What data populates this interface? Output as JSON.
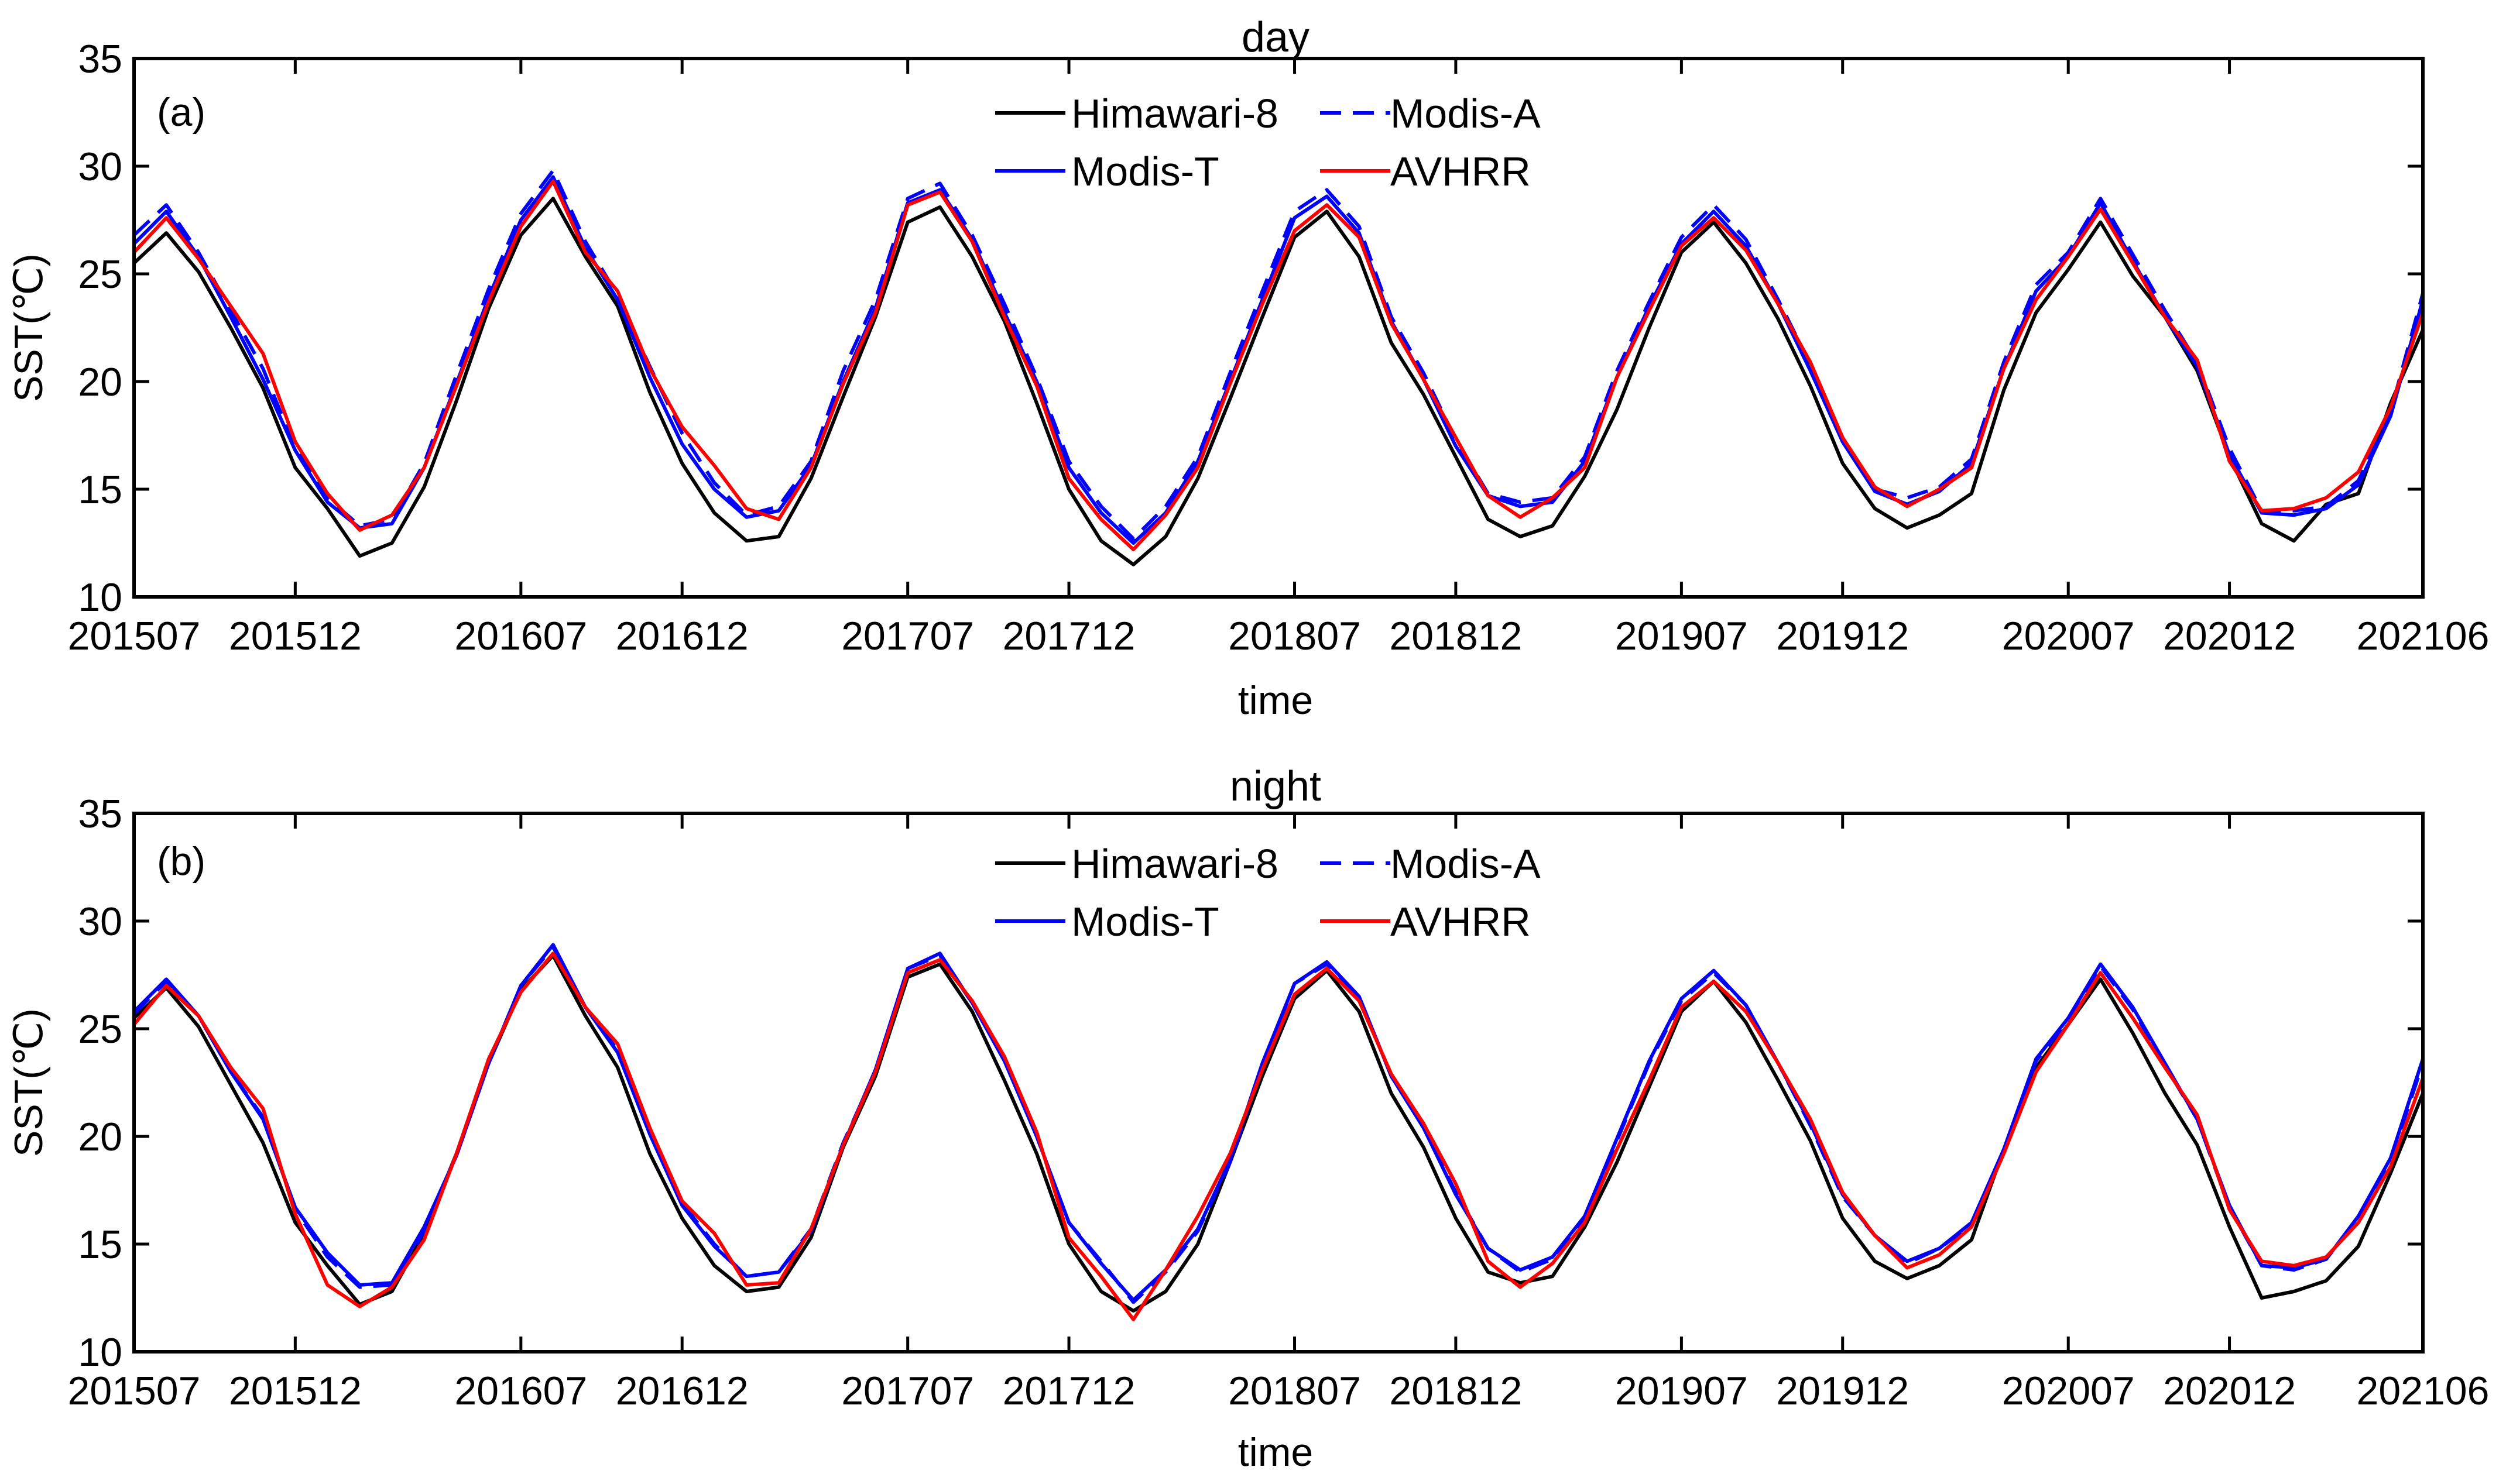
{
  "chart_data": [
    {
      "type": "line",
      "title": "day",
      "panel_label": "(a)",
      "xlabel": "time",
      "ylabel": "SST(℃)",
      "ylim": [
        10,
        35
      ],
      "yticks": [
        10,
        15,
        20,
        25,
        30,
        35
      ],
      "xtick_labels": [
        "201507",
        "201512",
        "201607",
        "201612",
        "201707",
        "201712",
        "201807",
        "201812",
        "201907",
        "201912",
        "202007",
        "202012",
        "202106"
      ],
      "x": [
        "201507",
        "201508",
        "201509",
        "201510",
        "201511",
        "201512",
        "201601",
        "201602",
        "201603",
        "201604",
        "201605",
        "201606",
        "201607",
        "201608",
        "201609",
        "201610",
        "201611",
        "201612",
        "201701",
        "201702",
        "201703",
        "201704",
        "201705",
        "201706",
        "201707",
        "201708",
        "201709",
        "201710",
        "201711",
        "201712",
        "201801",
        "201802",
        "201803",
        "201804",
        "201805",
        "201806",
        "201807",
        "201808",
        "201809",
        "201810",
        "201811",
        "201812",
        "201901",
        "201902",
        "201903",
        "201904",
        "201905",
        "201906",
        "201907",
        "201908",
        "201909",
        "201910",
        "201911",
        "201912",
        "202001",
        "202002",
        "202003",
        "202004",
        "202005",
        "202006",
        "202007",
        "202008",
        "202009",
        "202010",
        "202011",
        "202012",
        "202101",
        "202102",
        "202103",
        "202104",
        "202105",
        "202106"
      ],
      "series": [
        {
          "name": "Himawari-8",
          "color": "#000000",
          "dash": "solid",
          "values": [
            25.5,
            26.9,
            25.1,
            22.5,
            19.7,
            16.0,
            14.1,
            11.9,
            12.5,
            15.1,
            19.1,
            23.4,
            26.8,
            28.5,
            25.8,
            23.5,
            19.5,
            16.2,
            13.9,
            12.6,
            12.8,
            15.5,
            19.3,
            23.0,
            27.4,
            28.1,
            25.8,
            22.8,
            19.0,
            15.0,
            12.6,
            11.5,
            12.8,
            15.5,
            19.2,
            23.0,
            26.7,
            27.9,
            25.8,
            21.8,
            19.4,
            16.5,
            13.6,
            12.8,
            13.3,
            15.6,
            18.7,
            22.5,
            26.0,
            27.4,
            25.5,
            22.9,
            19.8,
            16.2,
            14.1,
            13.2,
            13.8,
            14.8,
            19.6,
            23.2,
            25.2,
            27.4,
            24.9,
            23.0,
            20.5,
            16.5,
            13.4,
            12.6,
            14.3,
            14.8,
            19.0,
            22.4
          ]
        },
        {
          "name": "Modis-A",
          "color": "#0000ff",
          "dash": "dashed",
          "values": [
            26.8,
            28.2,
            26.0,
            23.3,
            20.6,
            16.9,
            14.6,
            13.3,
            13.6,
            16.2,
            20.3,
            24.3,
            27.8,
            29.8,
            26.5,
            24.0,
            20.7,
            17.6,
            15.3,
            13.8,
            14.2,
            16.3,
            20.5,
            23.8,
            28.5,
            29.2,
            26.8,
            23.6,
            20.2,
            16.3,
            14.2,
            12.7,
            14.2,
            16.5,
            20.4,
            24.2,
            27.9,
            28.9,
            27.2,
            23.0,
            20.4,
            17.3,
            14.8,
            14.4,
            14.6,
            16.5,
            20.5,
            23.7,
            26.7,
            28.2,
            26.6,
            23.8,
            20.8,
            17.4,
            15.0,
            14.6,
            15.1,
            16.4,
            20.9,
            24.5,
            26.0,
            28.5,
            25.9,
            23.3,
            20.9,
            16.9,
            14.0,
            14.0,
            14.2,
            15.4,
            18.6,
            24.1
          ]
        },
        {
          "name": "Modis-T",
          "color": "#0000ff",
          "dash": "solid",
          "values": [
            26.4,
            27.9,
            25.8,
            23.0,
            20.1,
            16.8,
            14.4,
            13.2,
            13.4,
            16.0,
            19.9,
            23.9,
            27.5,
            29.5,
            26.2,
            23.8,
            20.2,
            17.1,
            15.0,
            13.7,
            14.0,
            16.1,
            20.0,
            23.4,
            28.3,
            28.9,
            26.6,
            23.2,
            20.0,
            16.0,
            13.9,
            12.5,
            13.9,
            16.3,
            20.0,
            23.8,
            27.6,
            28.6,
            26.9,
            22.8,
            20.1,
            17.0,
            14.7,
            14.2,
            14.4,
            16.3,
            20.2,
            23.5,
            26.4,
            27.9,
            26.3,
            23.6,
            20.5,
            17.2,
            14.9,
            14.3,
            14.9,
            16.2,
            20.6,
            24.2,
            25.8,
            28.3,
            25.6,
            23.0,
            20.7,
            16.6,
            13.9,
            13.8,
            14.1,
            15.2,
            18.4,
            23.8
          ]
        },
        {
          "name": "AVHRR",
          "color": "#ff0000",
          "dash": "solid",
          "values": [
            26.0,
            27.6,
            25.7,
            23.5,
            21.3,
            17.2,
            14.8,
            13.1,
            13.8,
            16.0,
            19.8,
            23.7,
            27.2,
            29.3,
            26.0,
            24.2,
            20.6,
            17.9,
            16.1,
            14.1,
            13.6,
            16.0,
            19.9,
            23.2,
            28.2,
            28.8,
            26.5,
            23.0,
            19.8,
            15.5,
            13.6,
            12.2,
            13.8,
            16.0,
            19.9,
            23.6,
            27.0,
            28.2,
            26.7,
            22.7,
            20.1,
            17.4,
            14.7,
            13.7,
            14.6,
            16.0,
            20.2,
            23.3,
            26.3,
            27.6,
            26.1,
            23.6,
            20.9,
            17.4,
            15.1,
            14.2,
            15.0,
            16.0,
            20.6,
            23.8,
            25.8,
            28.0,
            25.5,
            23.0,
            21.0,
            16.3,
            14.0,
            14.1,
            14.6,
            15.8,
            18.8,
            23.2
          ]
        }
      ]
    },
    {
      "type": "line",
      "title": "night",
      "panel_label": "(b)",
      "xlabel": "time",
      "ylabel": "SST(℃)",
      "ylim": [
        10,
        35
      ],
      "yticks": [
        10,
        15,
        20,
        25,
        30,
        35
      ],
      "xtick_labels": [
        "201507",
        "201512",
        "201607",
        "201612",
        "201707",
        "201712",
        "201807",
        "201812",
        "201907",
        "201912",
        "202007",
        "202012",
        "202106"
      ],
      "x": [
        "201507",
        "201508",
        "201509",
        "201510",
        "201511",
        "201512",
        "201601",
        "201602",
        "201603",
        "201604",
        "201605",
        "201606",
        "201607",
        "201608",
        "201609",
        "201610",
        "201611",
        "201612",
        "201701",
        "201702",
        "201703",
        "201704",
        "201705",
        "201706",
        "201707",
        "201708",
        "201709",
        "201710",
        "201711",
        "201712",
        "201801",
        "201802",
        "201803",
        "201804",
        "201805",
        "201806",
        "201807",
        "201808",
        "201809",
        "201810",
        "201811",
        "201812",
        "201901",
        "201902",
        "201903",
        "201904",
        "201905",
        "201906",
        "201907",
        "201908",
        "201909",
        "201910",
        "201911",
        "201912",
        "202001",
        "202002",
        "202003",
        "202004",
        "202005",
        "202006",
        "202007",
        "202008",
        "202009",
        "202010",
        "202011",
        "202012",
        "202101",
        "202102",
        "202103",
        "202104",
        "202105",
        "202106"
      ],
      "series": [
        {
          "name": "Himawari-8",
          "color": "#000000",
          "dash": "solid",
          "values": [
            25.5,
            26.9,
            25.1,
            22.4,
            19.7,
            16.0,
            14.0,
            12.2,
            12.8,
            15.5,
            19.2,
            23.4,
            26.8,
            28.4,
            25.6,
            23.2,
            19.2,
            16.2,
            14.0,
            12.8,
            13.0,
            15.3,
            19.5,
            22.8,
            27.4,
            28.0,
            25.8,
            22.6,
            19.2,
            15.0,
            12.8,
            11.9,
            12.8,
            15.0,
            18.8,
            22.8,
            26.4,
            27.7,
            25.8,
            22.0,
            19.5,
            16.2,
            13.7,
            13.2,
            13.5,
            15.8,
            18.8,
            22.3,
            25.8,
            27.2,
            25.3,
            22.6,
            19.8,
            16.2,
            14.2,
            13.4,
            14.0,
            15.2,
            19.4,
            23.2,
            25.2,
            27.3,
            24.8,
            22.0,
            19.6,
            15.8,
            12.5,
            12.8,
            13.3,
            14.9,
            18.3,
            22.0
          ]
        },
        {
          "name": "Modis-A",
          "color": "#0000ff",
          "dash": "dashed",
          "values": [
            25.7,
            27.2,
            25.6,
            23.0,
            20.9,
            16.6,
            14.4,
            13.0,
            13.1,
            15.6,
            19.1,
            23.4,
            27.0,
            28.8,
            26.0,
            24.0,
            20.2,
            16.9,
            15.0,
            13.5,
            13.7,
            15.7,
            19.7,
            23.0,
            27.8,
            28.4,
            26.2,
            23.6,
            20.0,
            16.0,
            14.2,
            12.3,
            13.7,
            15.6,
            18.8,
            23.3,
            27.1,
            28.0,
            26.5,
            22.8,
            20.4,
            17.4,
            14.8,
            13.7,
            14.3,
            16.2,
            19.8,
            23.4,
            26.3,
            27.6,
            26.1,
            23.4,
            20.5,
            17.2,
            15.4,
            14.1,
            14.8,
            15.9,
            19.3,
            23.5,
            25.4,
            27.9,
            25.9,
            23.3,
            20.8,
            16.7,
            14.0,
            13.8,
            14.3,
            16.2,
            18.9,
            23.4
          ]
        },
        {
          "name": "Modis-T",
          "color": "#0000ff",
          "dash": "solid",
          "values": [
            25.8,
            27.3,
            25.6,
            23.0,
            20.8,
            16.7,
            14.6,
            13.1,
            13.2,
            15.8,
            19.1,
            23.4,
            27.0,
            28.9,
            26.0,
            23.9,
            20.1,
            16.8,
            14.9,
            13.5,
            13.7,
            15.6,
            19.6,
            23.1,
            27.8,
            28.5,
            26.2,
            23.5,
            20.0,
            16.0,
            14.1,
            12.4,
            13.8,
            15.7,
            18.9,
            23.4,
            27.1,
            28.1,
            26.5,
            22.8,
            20.4,
            17.3,
            14.8,
            13.8,
            14.4,
            16.3,
            19.9,
            23.5,
            26.4,
            27.7,
            26.1,
            23.4,
            20.6,
            17.3,
            15.4,
            14.2,
            14.8,
            16.0,
            19.4,
            23.6,
            25.5,
            28.0,
            26.0,
            23.4,
            20.8,
            16.8,
            14.0,
            13.9,
            14.3,
            16.3,
            19.0,
            23.6
          ]
        },
        {
          "name": "AVHRR",
          "color": "#ff0000",
          "dash": "solid",
          "values": [
            25.2,
            27.0,
            25.6,
            23.2,
            21.3,
            16.4,
            13.1,
            12.1,
            13.0,
            15.2,
            19.2,
            23.6,
            26.7,
            28.5,
            26.0,
            24.3,
            20.4,
            17.0,
            15.5,
            13.1,
            13.2,
            15.7,
            19.6,
            23.0,
            27.6,
            28.2,
            26.3,
            23.7,
            20.2,
            15.3,
            13.5,
            11.5,
            13.8,
            16.3,
            19.2,
            23.1,
            26.6,
            27.8,
            26.3,
            22.9,
            20.6,
            17.8,
            14.2,
            13.0,
            14.1,
            16.0,
            19.4,
            22.6,
            26.0,
            27.2,
            25.8,
            23.4,
            20.8,
            17.4,
            15.4,
            13.9,
            14.5,
            15.8,
            19.2,
            23.0,
            25.2,
            27.6,
            25.5,
            23.2,
            21.0,
            16.6,
            14.2,
            14.0,
            14.4,
            16.0,
            18.6,
            22.7
          ]
        }
      ]
    }
  ]
}
